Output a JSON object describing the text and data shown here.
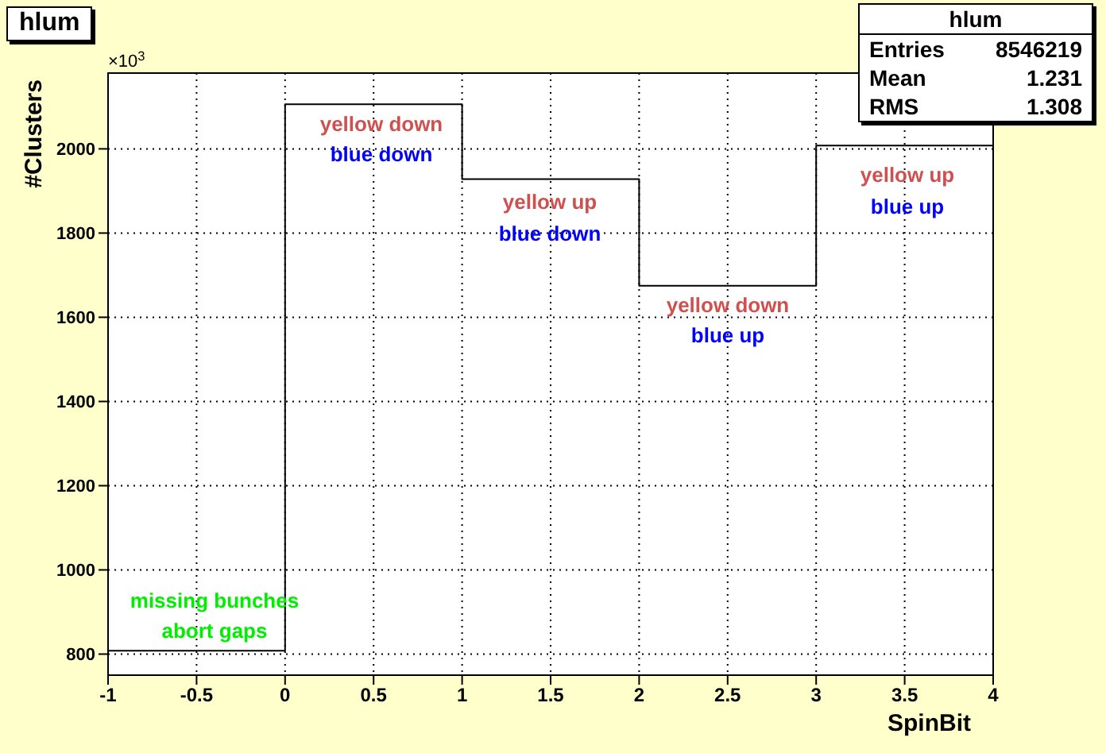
{
  "chart_data": {
    "type": "histogram",
    "title": "hlum",
    "xlabel": "SpinBit",
    "ylabel": "#Clusters",
    "bins": [
      -1,
      0,
      1,
      2,
      3,
      4
    ],
    "values": [
      808,
      2106,
      1928,
      1675,
      2008
    ],
    "color": "#000000",
    "xlim": [
      -1,
      4
    ],
    "xticks": [
      -1,
      -0.5,
      0,
      0.5,
      1,
      1.5,
      2,
      2.5,
      3,
      3.5,
      4
    ],
    "ylim": [
      750,
      2180
    ],
    "yticks": [
      800,
      1000,
      1200,
      1400,
      1600,
      1800,
      2000
    ],
    "grid": true,
    "annotations": [
      "×10$^{3}$",
      "hlum",
      "Entries",
      "8546219",
      "Mean",
      "1.231",
      "RMS",
      "1.308",
      "yellow down",
      "blue down",
      "yellow up",
      "blue down",
      "yellow down",
      "blue up",
      "yellow up",
      "blue up",
      "missing bunches",
      "abort gaps"
    ]
  }
}
